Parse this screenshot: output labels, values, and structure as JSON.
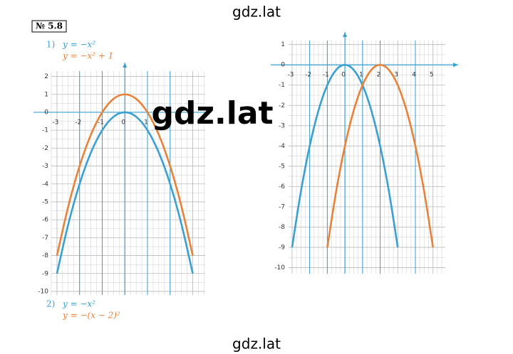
{
  "watermark_top": "gdz.lat",
  "watermark_center": "gdz.lat",
  "watermark_bottom": "gdz.lat",
  "problem": "№ 5.8",
  "part1": {
    "number": "1)"
  },
  "part2": {
    "number": "2)"
  },
  "chart_data": [
    {
      "type": "line",
      "x": [
        -3,
        -2.5,
        -2,
        -1.5,
        -1,
        -0.5,
        0,
        0.5,
        1,
        1.5,
        2,
        2.5,
        3
      ],
      "series": [
        {
          "name": "y = −x²",
          "color": "#3a9fd1",
          "values": [
            -9,
            -6.25,
            -4,
            -2.25,
            -1,
            -0.25,
            0,
            -0.25,
            -1,
            -2.25,
            -4,
            -6.25,
            -9
          ]
        },
        {
          "name": "y = −x² + 1",
          "color": "#e8823a",
          "values": [
            -8,
            -5.25,
            -3,
            -1.25,
            0,
            0.75,
            1,
            0.75,
            0,
            -1.25,
            -3,
            -5.25,
            -8
          ]
        }
      ],
      "xlim": [
        -3.25,
        3.55
      ],
      "ylim": [
        -10.2,
        2.3
      ],
      "xticks": [
        -3,
        -2,
        -1,
        0,
        1,
        2,
        3
      ],
      "yticks": [
        -10,
        -9,
        -8,
        -7,
        -6,
        -5,
        -4,
        -3,
        -2,
        -1,
        0,
        1,
        2
      ],
      "highlight_x": [
        -2,
        -1,
        1,
        2
      ],
      "grid": true
    },
    {
      "type": "line",
      "x": [
        -3,
        -2.5,
        -2,
        -1.5,
        -1,
        -0.5,
        0,
        0.5,
        1,
        1.5,
        2,
        2.5,
        3,
        3.5,
        4,
        4.5,
        5
      ],
      "series": [
        {
          "name": "y = −x²",
          "color": "#3a9fd1",
          "values": [
            -9,
            -6.25,
            -4,
            -2.25,
            -1,
            -0.25,
            0,
            -0.25,
            -1,
            -2.25,
            -4,
            -6.25,
            -9,
            null,
            null,
            null,
            null
          ]
        },
        {
          "name": "y = −(x − 2)²",
          "color": "#e8823a",
          "values": [
            null,
            null,
            null,
            null,
            -9,
            -6.25,
            -4,
            -2.25,
            -1,
            -0.25,
            0,
            -0.25,
            -1,
            -2.25,
            -4,
            -6.25,
            -9
          ]
        }
      ],
      "xlim": [
        -3.2,
        5.7
      ],
      "ylim": [
        -10.3,
        1.2
      ],
      "xticks": [
        -3,
        -2,
        -1,
        0,
        1,
        2,
        3,
        4,
        5
      ],
      "yticks": [
        -10,
        -9,
        -8,
        -7,
        -6,
        -5,
        -4,
        -3,
        -2,
        -1,
        0,
        1
      ],
      "highlight_x": [
        -2,
        -1,
        1,
        2,
        4
      ],
      "grid": true
    }
  ]
}
